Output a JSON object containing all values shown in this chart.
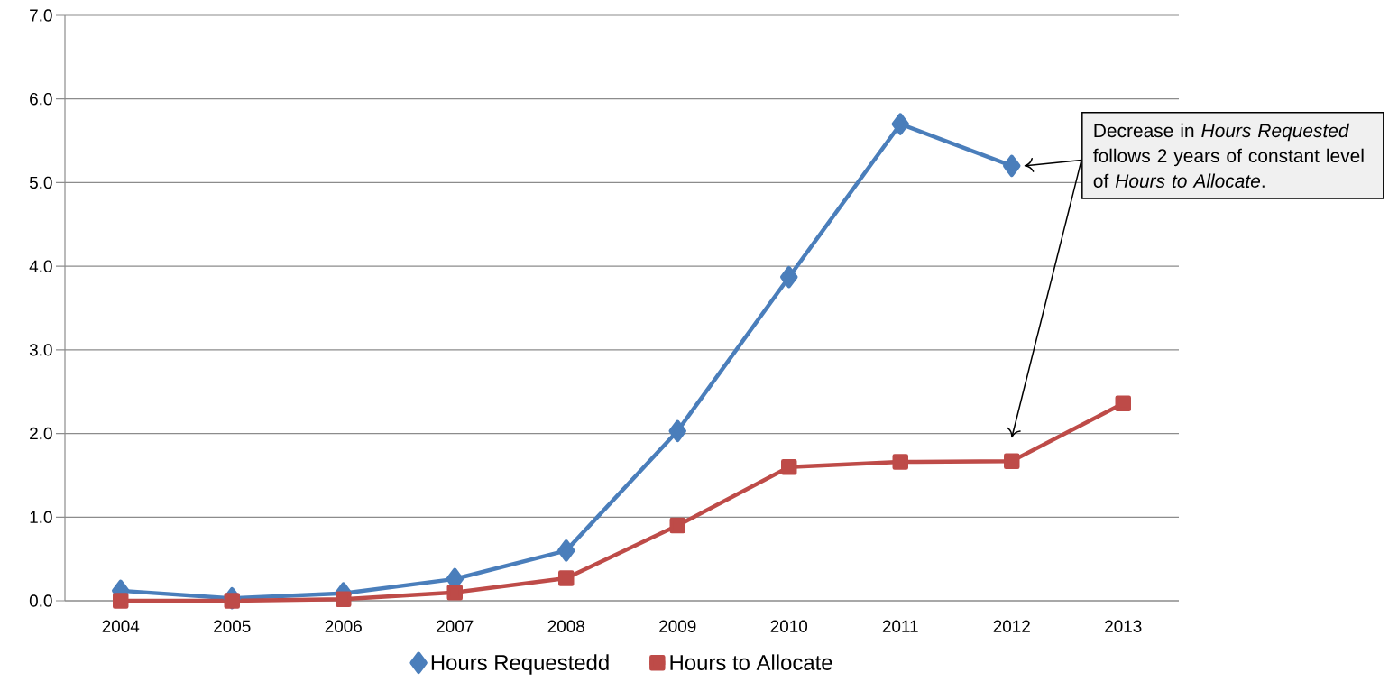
{
  "chart_data": {
    "type": "line",
    "categories": [
      "2004",
      "2005",
      "2006",
      "2007",
      "2008",
      "2009",
      "2010",
      "2011",
      "2012",
      "2013"
    ],
    "series": [
      {
        "name": "Hours Requestedd",
        "color": "#4a7ebb",
        "marker": "diamond",
        "values": [
          0.12,
          0.03,
          0.09,
          0.26,
          0.6,
          2.03,
          3.87,
          5.7,
          5.2,
          null
        ]
      },
      {
        "name": "Hours to Allocate",
        "color": "#be4b48",
        "marker": "square",
        "values": [
          0.0,
          0.0,
          0.02,
          0.1,
          0.27,
          0.9,
          1.6,
          1.66,
          1.67,
          2.36
        ]
      }
    ],
    "ylim": [
      0,
      7
    ],
    "yticks": [
      {
        "value": 0,
        "label": "0.0"
      },
      {
        "value": 1,
        "label": "1.0"
      },
      {
        "value": 2,
        "label": "2.0"
      },
      {
        "value": 3,
        "label": "3.0"
      },
      {
        "value": 4,
        "label": "4.0"
      },
      {
        "value": 5,
        "label": "5.0"
      },
      {
        "value": 6,
        "label": "6.0"
      },
      {
        "value": 7,
        "label": "7.0"
      }
    ],
    "grid": "y",
    "legend": "bottom",
    "annotations": [
      "Decrease in *Hours Requested* follows 2 years of constant level of *Hours to Allocate*."
    ]
  }
}
